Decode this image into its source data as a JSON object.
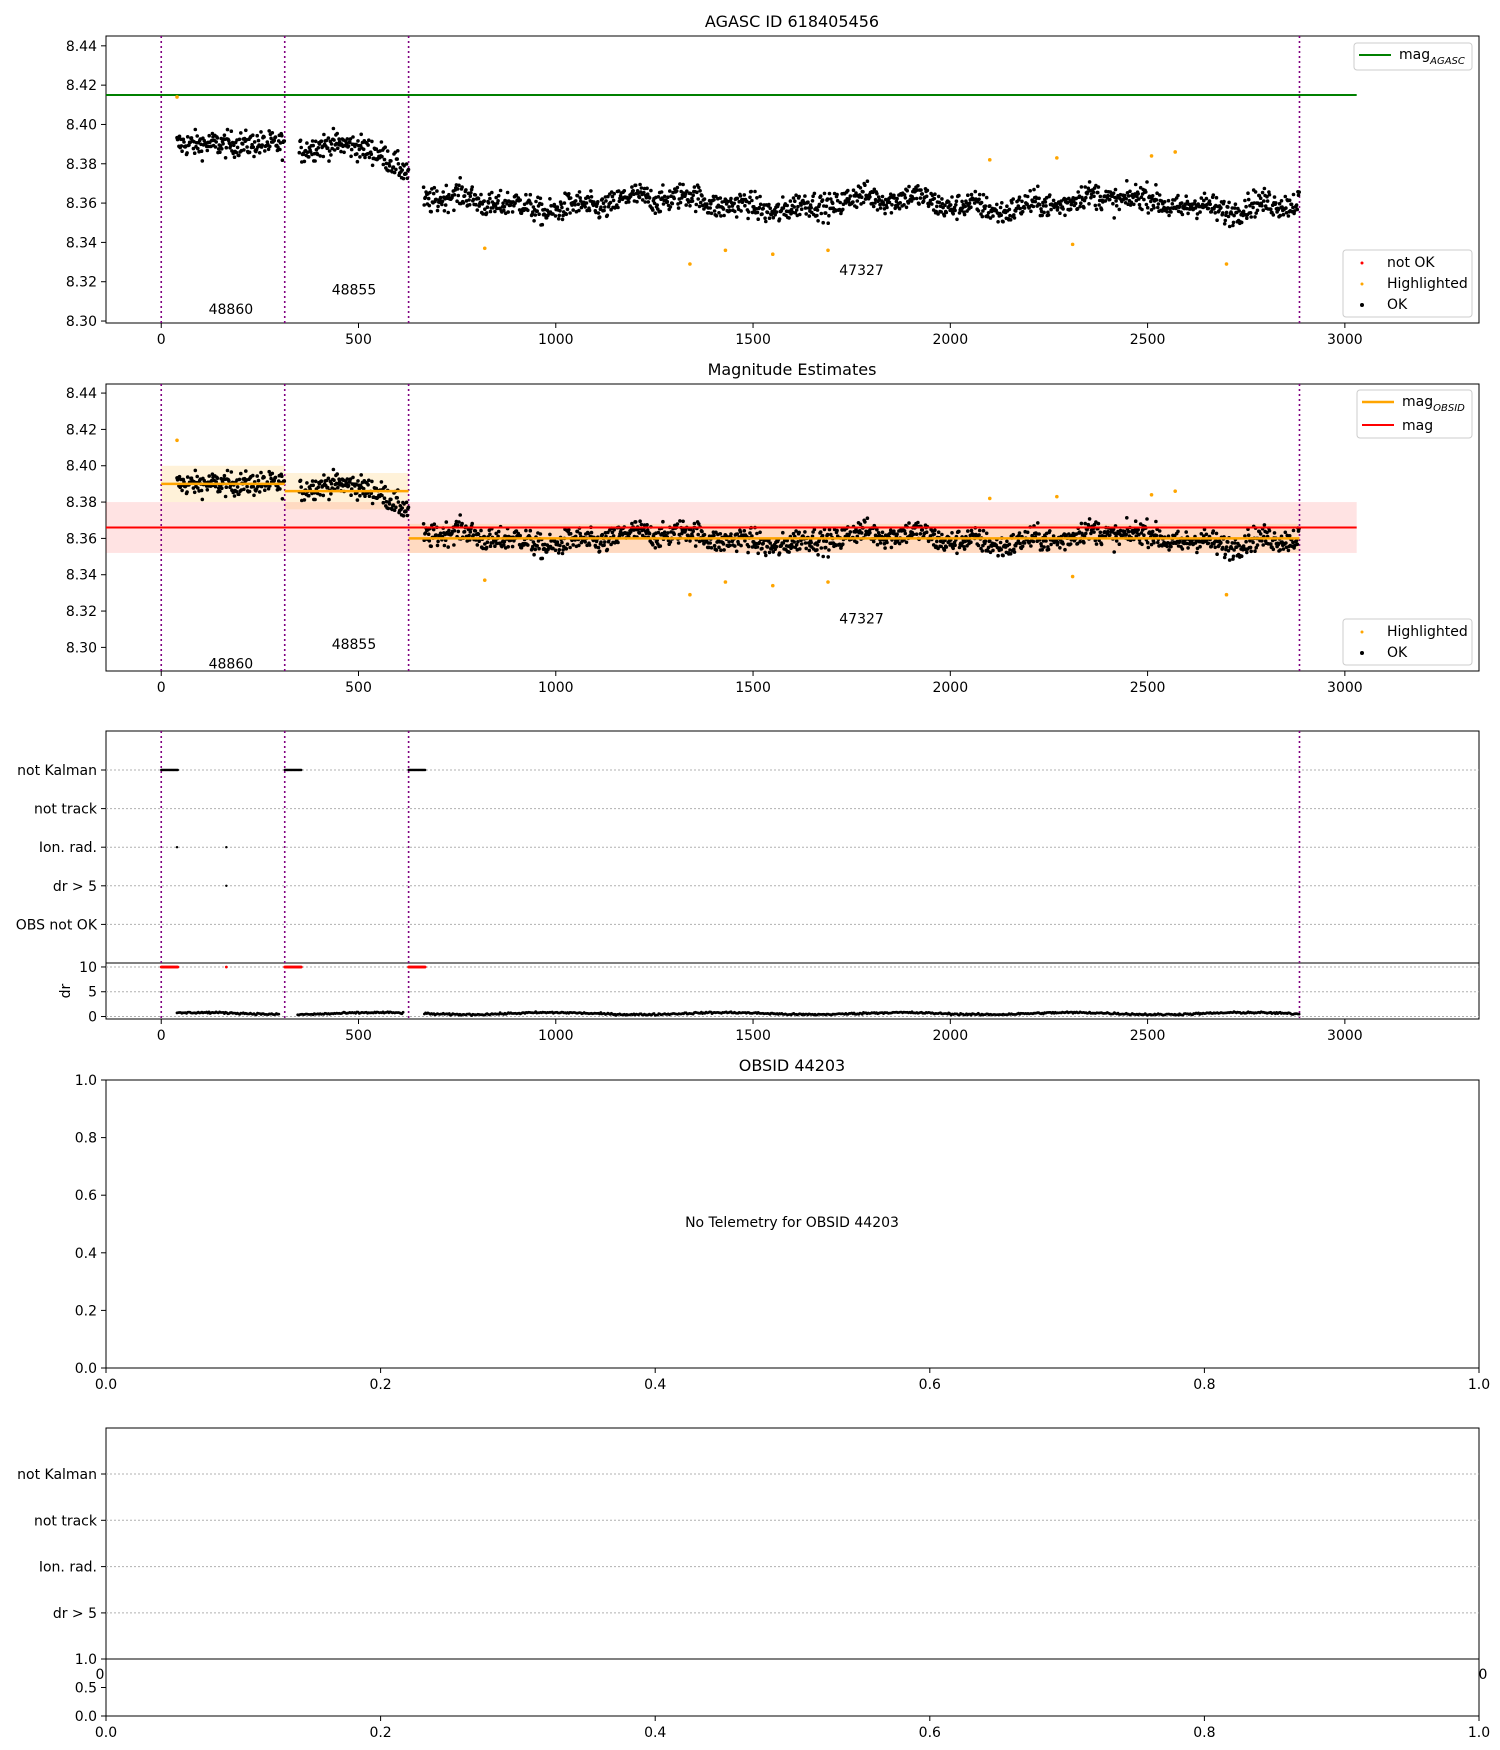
{
  "figure": {
    "title": "AGASC ID 618405456",
    "panel2_title": "Magnitude Estimates",
    "panel4_title": "OBSID 44203",
    "no_telemetry_text": "No Telemetry for OBSID 44203"
  },
  "colors": {
    "ok": "#000000",
    "highlighted": "#ffa500",
    "not_ok": "#ff0000",
    "agasc": "#008000",
    "obsid_mag": "#ffa500",
    "mag": "#ff0000",
    "boundary": "#800080"
  },
  "chart_data": [
    {
      "type": "scatter",
      "title": "AGASC ID 618405456",
      "xlim": [
        -140,
        3340
      ],
      "ylim": [
        8.299,
        8.445
      ],
      "x_ticks": [
        0,
        500,
        1000,
        1500,
        2000,
        2500,
        3000
      ],
      "y_ticks": [
        8.3,
        8.32,
        8.34,
        8.36,
        8.38,
        8.4,
        8.42,
        8.44
      ],
      "mag_agasc": 8.415,
      "mag_agasc_xrange": [
        -140,
        3030
      ],
      "obsid_boundaries": [
        0,
        313,
        627,
        2885
      ],
      "obsid_segments": [
        {
          "obsid": "48860",
          "x_range": [
            40,
            313
          ],
          "label_y": 8.306,
          "mean": 8.39
        },
        {
          "obsid": "48855",
          "x_range": [
            350,
            627
          ],
          "label_y": 8.316,
          "mean": 8.386
        },
        {
          "obsid": "47327",
          "x_range": [
            665,
            2885
          ],
          "label_y": 8.326,
          "mean": 8.36
        }
      ],
      "highlighted_points": [
        [
          40,
          8.414
        ],
        [
          820,
          8.337
        ],
        [
          1340,
          8.329
        ],
        [
          1430,
          8.336
        ],
        [
          1550,
          8.334
        ],
        [
          1690,
          8.336
        ],
        [
          2100,
          8.382
        ],
        [
          2270,
          8.383
        ],
        [
          2310,
          8.339
        ],
        [
          2510,
          8.384
        ],
        [
          2570,
          8.386
        ],
        [
          2700,
          8.329
        ]
      ],
      "legend": {
        "upper": [
          "mag_AGASC"
        ],
        "lower": [
          "not OK",
          "Highlighted",
          "OK"
        ],
        "placement_upper": "upper-right",
        "placement_lower": "lower-right"
      }
    },
    {
      "type": "scatter",
      "title": "Magnitude Estimates",
      "xlim": [
        -140,
        3340
      ],
      "ylim": [
        8.287,
        8.445
      ],
      "x_ticks": [
        0,
        500,
        1000,
        1500,
        2000,
        2500,
        3000
      ],
      "y_ticks": [
        8.3,
        8.32,
        8.34,
        8.36,
        8.38,
        8.4,
        8.42,
        8.44
      ],
      "mag": 8.366,
      "mag_band": [
        8.352,
        8.38
      ],
      "mag_xrange": [
        -140,
        3030
      ],
      "obsid_mags": [
        {
          "x_range": [
            0,
            313
          ],
          "value": 8.39,
          "band": [
            8.38,
            8.4
          ]
        },
        {
          "x_range": [
            313,
            627
          ],
          "value": 8.386,
          "band": [
            8.376,
            8.396
          ]
        },
        {
          "x_range": [
            627,
            2885
          ],
          "value": 8.36,
          "band": [
            8.352,
            8.368
          ]
        }
      ],
      "obsid_label_y": [
        8.291,
        8.302,
        8.316
      ],
      "legend": {
        "upper": [
          "mag_OBSID",
          "mag"
        ],
        "lower": [
          "Highlighted",
          "OK"
        ],
        "placement_upper": "upper-right",
        "placement_lower": "lower-right"
      }
    },
    {
      "type": "scatter",
      "title": "",
      "xlim": [
        -140,
        3340
      ],
      "x_ticks": [
        0,
        500,
        1000,
        1500,
        2000,
        2500,
        3000
      ],
      "flag_labels": [
        "not Kalman",
        "not track",
        "Ion. rad.",
        "dr > 5",
        "OBS not OK"
      ],
      "flag_runs": [
        {
          "flag": "not Kalman",
          "x_range": [
            0,
            42
          ]
        },
        {
          "flag": "not Kalman",
          "x_range": [
            313,
            355
          ]
        },
        {
          "flag": "not Kalman",
          "x_range": [
            627,
            670
          ]
        }
      ],
      "flag_points": [
        {
          "flag": "Ion. rad.",
          "x": 40
        },
        {
          "flag": "Ion. rad.",
          "x": 165
        },
        {
          "flag": "dr > 5",
          "x": 165
        }
      ],
      "dr": {
        "ylabel": "dr",
        "ylim": [
          -0.5,
          10.8
        ],
        "y_ticks": [
          0,
          5,
          10
        ],
        "level": 0.6,
        "red_points": [
          [
            0,
            42,
            10
          ],
          [
            313,
            355,
            10
          ],
          [
            627,
            670,
            10
          ],
          [
            165,
            165,
            10
          ]
        ]
      }
    },
    {
      "type": "scatter",
      "title": "OBSID 44203",
      "xlim": [
        0,
        1
      ],
      "ylim": [
        0,
        1
      ],
      "x_ticks": [
        0.0,
        0.2,
        0.4,
        0.6,
        0.8,
        1.0
      ],
      "y_ticks": [
        0.0,
        0.2,
        0.4,
        0.6,
        0.8,
        1.0
      ],
      "annotation": "No Telemetry for OBSID 44203"
    },
    {
      "type": "scatter",
      "title": "",
      "flag_labels": [
        "not Kalman",
        "not track",
        "Ion. rad.",
        "dr > 5"
      ],
      "xlim": [
        0,
        1
      ],
      "ylim": [
        0,
        1
      ],
      "x_ticks": [
        0.0,
        0.2,
        0.4,
        0.6,
        0.8,
        1.0
      ],
      "y_ticks": [
        0.0,
        0.5,
        1.0
      ],
      "overlapped_tick_labels": [
        "0",
        "0"
      ]
    }
  ]
}
